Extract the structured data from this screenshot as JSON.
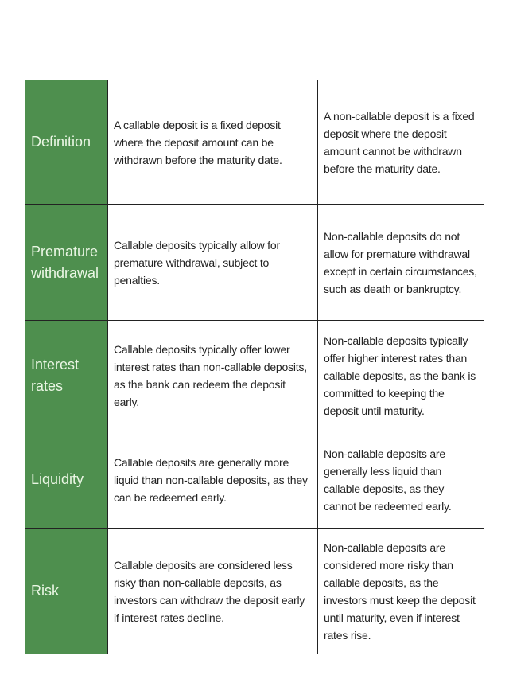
{
  "colors": {
    "label_bg": "#4e8f4e",
    "label_text": "#eaf6e4",
    "border": "#222222"
  },
  "rows": [
    {
      "label": "Definition",
      "callable": "A callable deposit is a fixed deposit where the deposit amount can be withdrawn before the maturity date.",
      "non_callable": "A non-callable deposit is a fixed deposit where the deposit amount cannot be withdrawn before the maturity date."
    },
    {
      "label": "Premature withdrawal",
      "callable": "Callable deposits typically allow for premature withdrawal, subject to penalties.",
      "non_callable": "Non-callable deposits do not allow for premature withdrawal except in certain circumstances, such as death or bankruptcy."
    },
    {
      "label": "Interest rates",
      "callable": "Callable deposits typically offer lower interest rates than non-callable deposits, as the bank can redeem the deposit early.",
      "non_callable": "Non-callable deposits typically offer higher interest rates than callable deposits, as the bank is committed to keeping the deposit until maturity."
    },
    {
      "label": "Liquidity",
      "callable": "Callable deposits are generally more liquid than non-callable deposits, as they can be redeemed early.",
      "non_callable": "Non-callable deposits are generally less liquid than callable deposits, as they cannot be redeemed early."
    },
    {
      "label": "Risk",
      "callable": "Callable deposits are considered less risky than non-callable deposits, as investors can withdraw the deposit early if interest rates decline.",
      "non_callable": "Non-callable deposits are considered more risky than callable deposits, as the investors must keep the deposit until maturity, even if interest rates rise."
    }
  ]
}
